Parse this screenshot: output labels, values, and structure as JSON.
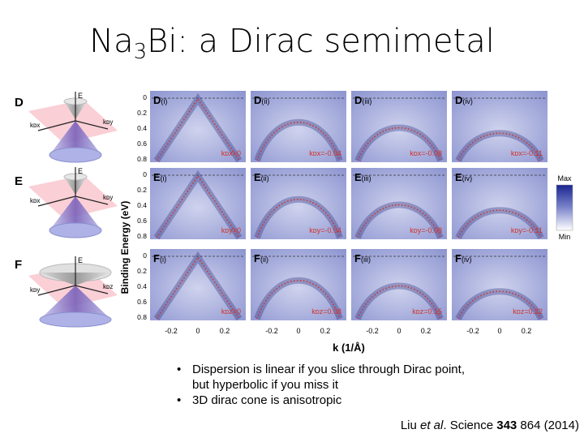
{
  "slide": {
    "title_main": "Na",
    "title_sub": "3",
    "title_rest": "Bi: a Dirac semimetal",
    "bullets": [
      "Dispersion is linear if you slice through Dirac point, but hyperbolic if you miss it",
      "3D dirac cone is anisotropic"
    ],
    "citation": {
      "authors": "Liu ",
      "etal": "et al",
      "mid": ". Science ",
      "volume": "343",
      "rest": " 864 (2014)"
    }
  },
  "figure": {
    "row_letters": [
      "D",
      "E",
      "F"
    ],
    "cone_labels": {
      "D": {
        "e": "E",
        "a": "kᴅx",
        "b": "kᴅy"
      },
      "E": {
        "e": "E",
        "a": "kᴅx",
        "b": "kᴅy"
      },
      "F": {
        "e": "E",
        "a": "kᴅy",
        "b": "kᴅz"
      }
    },
    "y_axis_label": "Binding Energy (eV)",
    "y_ticks": [
      "0",
      "0.2",
      "0.4",
      "0.6",
      "0.8"
    ],
    "x_axis_label": "k (1/Å)",
    "x_ticks": [
      "-0.2",
      "0",
      "0.2"
    ],
    "colorbar": {
      "max": "Max",
      "min": "Min",
      "colors": [
        "#1a2590",
        "#7c86cc",
        "#ffffff"
      ]
    },
    "panels": [
      {
        "id": "D(i)",
        "letter": "D",
        "roman": "(i)",
        "label": "kᴅx=0",
        "shape": "linear"
      },
      {
        "id": "D(ii)",
        "letter": "D",
        "roman": "(ii)",
        "label": "kᴅx=-0.04",
        "shape": "hyper"
      },
      {
        "id": "D(iii)",
        "letter": "D",
        "roman": "(iii)",
        "label": "kᴅx=-0.08",
        "shape": "hyper"
      },
      {
        "id": "D(iv)",
        "letter": "D",
        "roman": "(iv)",
        "label": "kᴅx=-0.11",
        "shape": "hyper"
      },
      {
        "id": "E(i)",
        "letter": "E",
        "roman": "(i)",
        "label": "kᴅy=0",
        "shape": "linear"
      },
      {
        "id": "E(ii)",
        "letter": "E",
        "roman": "(ii)",
        "label": "kᴅy=-0.04",
        "shape": "hyper"
      },
      {
        "id": "E(iii)",
        "letter": "E",
        "roman": "(iii)",
        "label": "kᴅy=-0.08",
        "shape": "hyper"
      },
      {
        "id": "E(iv)",
        "letter": "E",
        "roman": "(iv)",
        "label": "kᴅy=-0.11",
        "shape": "hyper"
      },
      {
        "id": "F(i)",
        "letter": "F",
        "roman": "(i)",
        "label": "kᴅz=0",
        "shape": "linear"
      },
      {
        "id": "F(ii)",
        "letter": "F",
        "roman": "(ii)",
        "label": "kᴅz=0.08",
        "shape": "hyper"
      },
      {
        "id": "F(iii)",
        "letter": "F",
        "roman": "(iii)",
        "label": "kᴅz=0.15",
        "shape": "hyper"
      },
      {
        "id": "F(iv)",
        "letter": "F",
        "roman": "(iv)",
        "label": "kᴅz=0.22",
        "shape": "hyper"
      }
    ]
  }
}
